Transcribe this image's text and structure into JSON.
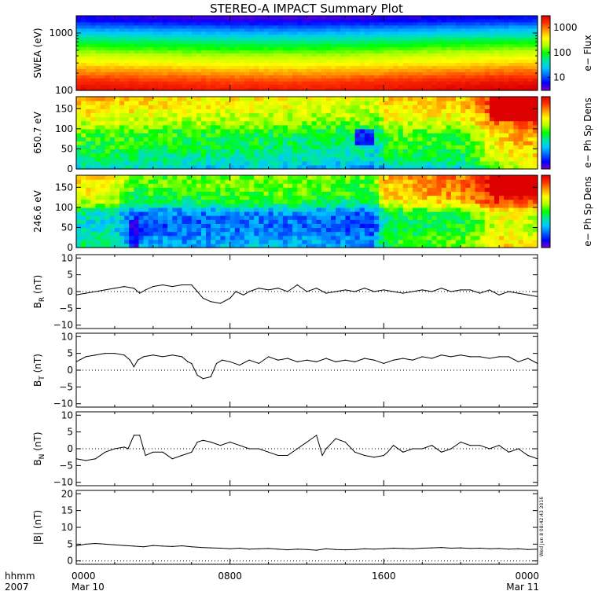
{
  "figure": {
    "title": "STEREO-A IMPACT Summary Plot",
    "stamp": "Wed Jun  8 08:42:43 2016",
    "time_axis": {
      "label_line1": "hhmm",
      "label_line2": "2007",
      "ticks": [
        {
          "hour": 0,
          "line1": "0000",
          "line2": "Mar 10"
        },
        {
          "hour": 8,
          "line1": "0800",
          "line2": ""
        },
        {
          "hour": 16,
          "line1": "1600",
          "line2": ""
        },
        {
          "hour": 24,
          "line1": "0000",
          "line2": "Mar 11"
        }
      ],
      "range_hours": [
        0,
        24
      ]
    }
  },
  "colors": {
    "colormap": [
      "#7a00c8",
      "#0000ff",
      "#0064ff",
      "#00c8ff",
      "#00e6a0",
      "#00ff00",
      "#b4ff00",
      "#ffff00",
      "#ffa000",
      "#ff3200",
      "#dc0000"
    ]
  },
  "chart_data": [
    {
      "type": "heatmap",
      "ylabel": "SWEA (eV)",
      "yscale": "log",
      "ylim": [
        100,
        2000
      ],
      "yticks": [
        {
          "v": 1000,
          "label": "1000"
        },
        {
          "v": 100,
          "label": "100"
        }
      ],
      "colorbar": {
        "label": "e− Flux",
        "scale": "log",
        "range": [
          3,
          3000
        ],
        "ticks": [
          {
            "v": 1000,
            "label": "1000"
          },
          {
            "v": 100,
            "label": "100"
          },
          {
            "v": 10,
            "label": "10"
          }
        ]
      },
      "energy_profile": [
        [
          100,
          0.97
        ],
        [
          150,
          0.9
        ],
        [
          200,
          0.82
        ],
        [
          300,
          0.7
        ],
        [
          400,
          0.62
        ],
        [
          500,
          0.55
        ],
        [
          650,
          0.47
        ],
        [
          800,
          0.4
        ],
        [
          1000,
          0.3
        ],
        [
          1300,
          0.2
        ],
        [
          1600,
          0.1
        ],
        [
          2000,
          0.05
        ]
      ],
      "time_modulation": [
        [
          0,
          0.02
        ],
        [
          4,
          0.0
        ],
        [
          8,
          -0.02
        ],
        [
          12,
          -0.02
        ],
        [
          14,
          -0.01
        ],
        [
          16,
          0.0
        ],
        [
          20,
          0.03
        ],
        [
          24,
          0.05
        ]
      ]
    },
    {
      "type": "heatmap",
      "ylabel": "650.7 eV",
      "ylim": [
        0,
        180
      ],
      "yticks": [
        {
          "v": 150,
          "label": "150"
        },
        {
          "v": 100,
          "label": "100"
        },
        {
          "v": 50,
          "label": "50"
        },
        {
          "v": 0,
          "label": "0"
        }
      ],
      "colorbar": {
        "label": "e− Ph Sp Dens"
      },
      "time_profile": [
        [
          0,
          0.55
        ],
        [
          2,
          0.55
        ],
        [
          4,
          0.52
        ],
        [
          6,
          0.52
        ],
        [
          8,
          0.5
        ],
        [
          10,
          0.5
        ],
        [
          12,
          0.48
        ],
        [
          14,
          0.47
        ],
        [
          15,
          0.45
        ],
        [
          15.8,
          0.43
        ],
        [
          16,
          0.55
        ],
        [
          18,
          0.55
        ],
        [
          20,
          0.55
        ],
        [
          21,
          0.65
        ],
        [
          22,
          0.75
        ],
        [
          23,
          0.8
        ],
        [
          24,
          0.82
        ]
      ],
      "pitch_profile": [
        [
          0,
          0.3
        ],
        [
          30,
          0.4
        ],
        [
          60,
          0.45
        ],
        [
          90,
          0.48
        ],
        [
          120,
          0.6
        ],
        [
          150,
          0.68
        ],
        [
          180,
          0.7
        ]
      ],
      "features": [
        {
          "hours": [
            14.6,
            15.4
          ],
          "pitch": [
            60,
            100
          ],
          "delta": -0.3
        },
        {
          "hours": [
            21.5,
            24
          ],
          "pitch": [
            120,
            180
          ],
          "delta": 0.2
        }
      ]
    },
    {
      "type": "heatmap",
      "ylabel": "246.6 eV",
      "ylim": [
        0,
        180
      ],
      "yticks": [
        {
          "v": 150,
          "label": "150"
        },
        {
          "v": 100,
          "label": "100"
        },
        {
          "v": 50,
          "label": "50"
        },
        {
          "v": 0,
          "label": "0"
        }
      ],
      "colorbar": {
        "label": "e− Ph Sp Dens"
      },
      "time_profile": [
        [
          0,
          0.5
        ],
        [
          2,
          0.48
        ],
        [
          3,
          0.3
        ],
        [
          4,
          0.32
        ],
        [
          8,
          0.35
        ],
        [
          12,
          0.35
        ],
        [
          15.5,
          0.3
        ],
        [
          16,
          0.55
        ],
        [
          18,
          0.6
        ],
        [
          20,
          0.62
        ],
        [
          21,
          0.7
        ],
        [
          22,
          0.8
        ],
        [
          24,
          0.75
        ]
      ],
      "pitch_profile": [
        [
          0,
          0.45
        ],
        [
          30,
          0.4
        ],
        [
          60,
          0.35
        ],
        [
          90,
          0.4
        ],
        [
          110,
          0.6
        ],
        [
          140,
          0.7
        ],
        [
          180,
          0.72
        ]
      ],
      "features": [
        {
          "hours": [
            2.8,
            3.3
          ],
          "pitch": [
            0,
            70
          ],
          "delta": -0.15
        },
        {
          "hours": [
            21.5,
            24
          ],
          "pitch": [
            130,
            180
          ],
          "delta": 0.15
        }
      ]
    },
    {
      "type": "line",
      "ylabel_main": "B",
      "ylabel_sub": "R",
      "ylabel_unit": " (nT)",
      "ylim": [
        -11,
        11
      ],
      "yticks": [
        {
          "v": 10,
          "label": "10"
        },
        {
          "v": 5,
          "label": "5"
        },
        {
          "v": 0,
          "label": "0"
        },
        {
          "v": -5,
          "label": "−5"
        },
        {
          "v": -10,
          "label": "−10"
        }
      ],
      "x_hours": [
        0,
        0.5,
        1,
        1.5,
        2,
        2.5,
        3,
        3.3,
        3.6,
        4,
        4.5,
        5,
        5.5,
        6,
        6.3,
        6.6,
        7,
        7.5,
        8,
        8.3,
        8.7,
        9,
        9.5,
        10,
        10.5,
        11,
        11.5,
        12,
        12.5,
        13,
        13.5,
        14,
        14.5,
        15,
        15.5,
        16,
        16.5,
        17,
        17.5,
        18,
        18.5,
        19,
        19.5,
        20,
        20.5,
        21,
        21.5,
        22,
        22.5,
        23,
        23.5,
        24
      ],
      "values": [
        -1,
        -0.5,
        0,
        0.5,
        1,
        1.5,
        1,
        -0.5,
        0.5,
        1.5,
        2,
        1.5,
        2,
        2,
        0,
        -2,
        -3,
        -3.5,
        -2,
        0,
        -1,
        0,
        1,
        0.5,
        1,
        0,
        2,
        0,
        1,
        -0.5,
        0,
        0.5,
        0,
        1,
        0,
        0.5,
        0,
        -0.5,
        0,
        0.5,
        0,
        1,
        0,
        0.5,
        0.5,
        -0.5,
        0.5,
        -1,
        0,
        -0.5,
        -1,
        -1.5
      ]
    },
    {
      "type": "line",
      "ylabel_main": "B",
      "ylabel_sub": "T",
      "ylabel_unit": " (nT)",
      "ylim": [
        -11,
        11
      ],
      "yticks": [
        {
          "v": 10,
          "label": "10"
        },
        {
          "v": 5,
          "label": "5"
        },
        {
          "v": 0,
          "label": "0"
        },
        {
          "v": -5,
          "label": "−5"
        },
        {
          "v": -10,
          "label": "−10"
        }
      ],
      "x_hours": [
        0,
        0.5,
        1,
        1.5,
        2,
        2.5,
        2.8,
        3,
        3.2,
        3.5,
        4,
        4.5,
        5,
        5.5,
        5.8,
        6,
        6.3,
        6.6,
        7,
        7.3,
        7.6,
        8,
        8.5,
        9,
        9.5,
        10,
        10.5,
        11,
        11.5,
        12,
        12.5,
        13,
        13.5,
        14,
        14.5,
        15,
        15.5,
        16,
        16.5,
        17,
        17.5,
        18,
        18.5,
        19,
        19.5,
        20,
        20.5,
        21,
        21.5,
        22,
        22.5,
        23,
        23.5,
        24
      ],
      "values": [
        2.5,
        4,
        4.5,
        5,
        5,
        4.5,
        3,
        1,
        3,
        4,
        4.5,
        4,
        4.5,
        4,
        2.5,
        2,
        -1.5,
        -2.5,
        -2,
        2,
        3,
        2.5,
        1.5,
        3,
        2,
        4,
        3,
        3.5,
        2.5,
        3,
        2.5,
        3.5,
        2.5,
        3,
        2.5,
        3.5,
        3,
        2,
        3,
        3.5,
        3,
        4,
        3.5,
        4.5,
        4,
        4.5,
        4,
        4,
        3.5,
        4,
        4,
        2.5,
        3.5,
        2
      ]
    },
    {
      "type": "line",
      "ylabel_main": "B",
      "ylabel_sub": "N",
      "ylabel_unit": " (nT)",
      "ylim": [
        -11,
        11
      ],
      "yticks": [
        {
          "v": 10,
          "label": "10"
        },
        {
          "v": 5,
          "label": "5"
        },
        {
          "v": 0,
          "label": "0"
        },
        {
          "v": -5,
          "label": "−5"
        },
        {
          "v": -10,
          "label": "−10"
        }
      ],
      "x_hours": [
        0,
        0.5,
        1,
        1.5,
        2,
        2.5,
        2.7,
        3,
        3.3,
        3.6,
        4,
        4.5,
        5,
        5.5,
        6,
        6.3,
        6.6,
        7,
        7.5,
        8,
        8.5,
        9,
        9.5,
        10,
        10.5,
        11,
        11.5,
        12,
        12.5,
        12.8,
        13,
        13.5,
        14,
        14.5,
        15,
        15.5,
        16,
        16.2,
        16.5,
        17,
        17.5,
        18,
        18.5,
        19,
        19.5,
        20,
        20.5,
        21,
        21.5,
        22,
        22.5,
        23,
        23.5,
        24
      ],
      "values": [
        -3,
        -3.5,
        -3,
        -1,
        0,
        0.5,
        0,
        4,
        4,
        -2,
        -1,
        -1,
        -3,
        -2,
        -1,
        2,
        2.5,
        2,
        1,
        2,
        1,
        0,
        0,
        -1,
        -2,
        -2,
        0,
        2,
        4,
        -2,
        0,
        3,
        2,
        -1,
        -2,
        -2.5,
        -2,
        -1,
        1,
        -1,
        0,
        0,
        1,
        -1,
        0,
        2,
        1,
        1,
        0,
        1,
        -1,
        0,
        -2,
        -3
      ]
    },
    {
      "type": "line",
      "ylabel_main": "|B|",
      "ylabel_sub": "",
      "ylabel_unit": " (nT)",
      "ylim": [
        -1,
        21
      ],
      "yticks": [
        {
          "v": 20,
          "label": "20"
        },
        {
          "v": 15,
          "label": "15"
        },
        {
          "v": 10,
          "label": "10"
        },
        {
          "v": 5,
          "label": "5"
        },
        {
          "v": 0,
          "label": "0"
        }
      ],
      "x_hours": [
        0,
        0.5,
        1,
        1.5,
        2,
        2.5,
        3,
        3.5,
        4,
        4.5,
        5,
        5.5,
        6,
        6.5,
        7,
        7.5,
        8,
        8.5,
        9,
        9.5,
        10,
        10.5,
        11,
        11.5,
        12,
        12.5,
        13,
        13.5,
        14,
        14.5,
        15,
        15.5,
        16,
        16.5,
        17,
        17.5,
        18,
        18.5,
        19,
        19.5,
        20,
        20.5,
        21,
        21.5,
        22,
        22.5,
        23,
        23.5,
        24
      ],
      "values": [
        4.5,
        5,
        5.2,
        5,
        4.8,
        4.6,
        4.4,
        4.2,
        4.6,
        4.4,
        4.3,
        4.5,
        4.2,
        4,
        3.9,
        3.8,
        3.6,
        3.8,
        3.5,
        3.6,
        3.7,
        3.5,
        3.3,
        3.5,
        3.4,
        3.2,
        3.6,
        3.4,
        3.3,
        3.4,
        3.6,
        3.5,
        3.6,
        3.8,
        3.7,
        3.6,
        3.8,
        3.9,
        4,
        3.8,
        3.9,
        3.7,
        3.8,
        3.6,
        3.7,
        3.5,
        3.6,
        3.4,
        3.5
      ]
    }
  ]
}
